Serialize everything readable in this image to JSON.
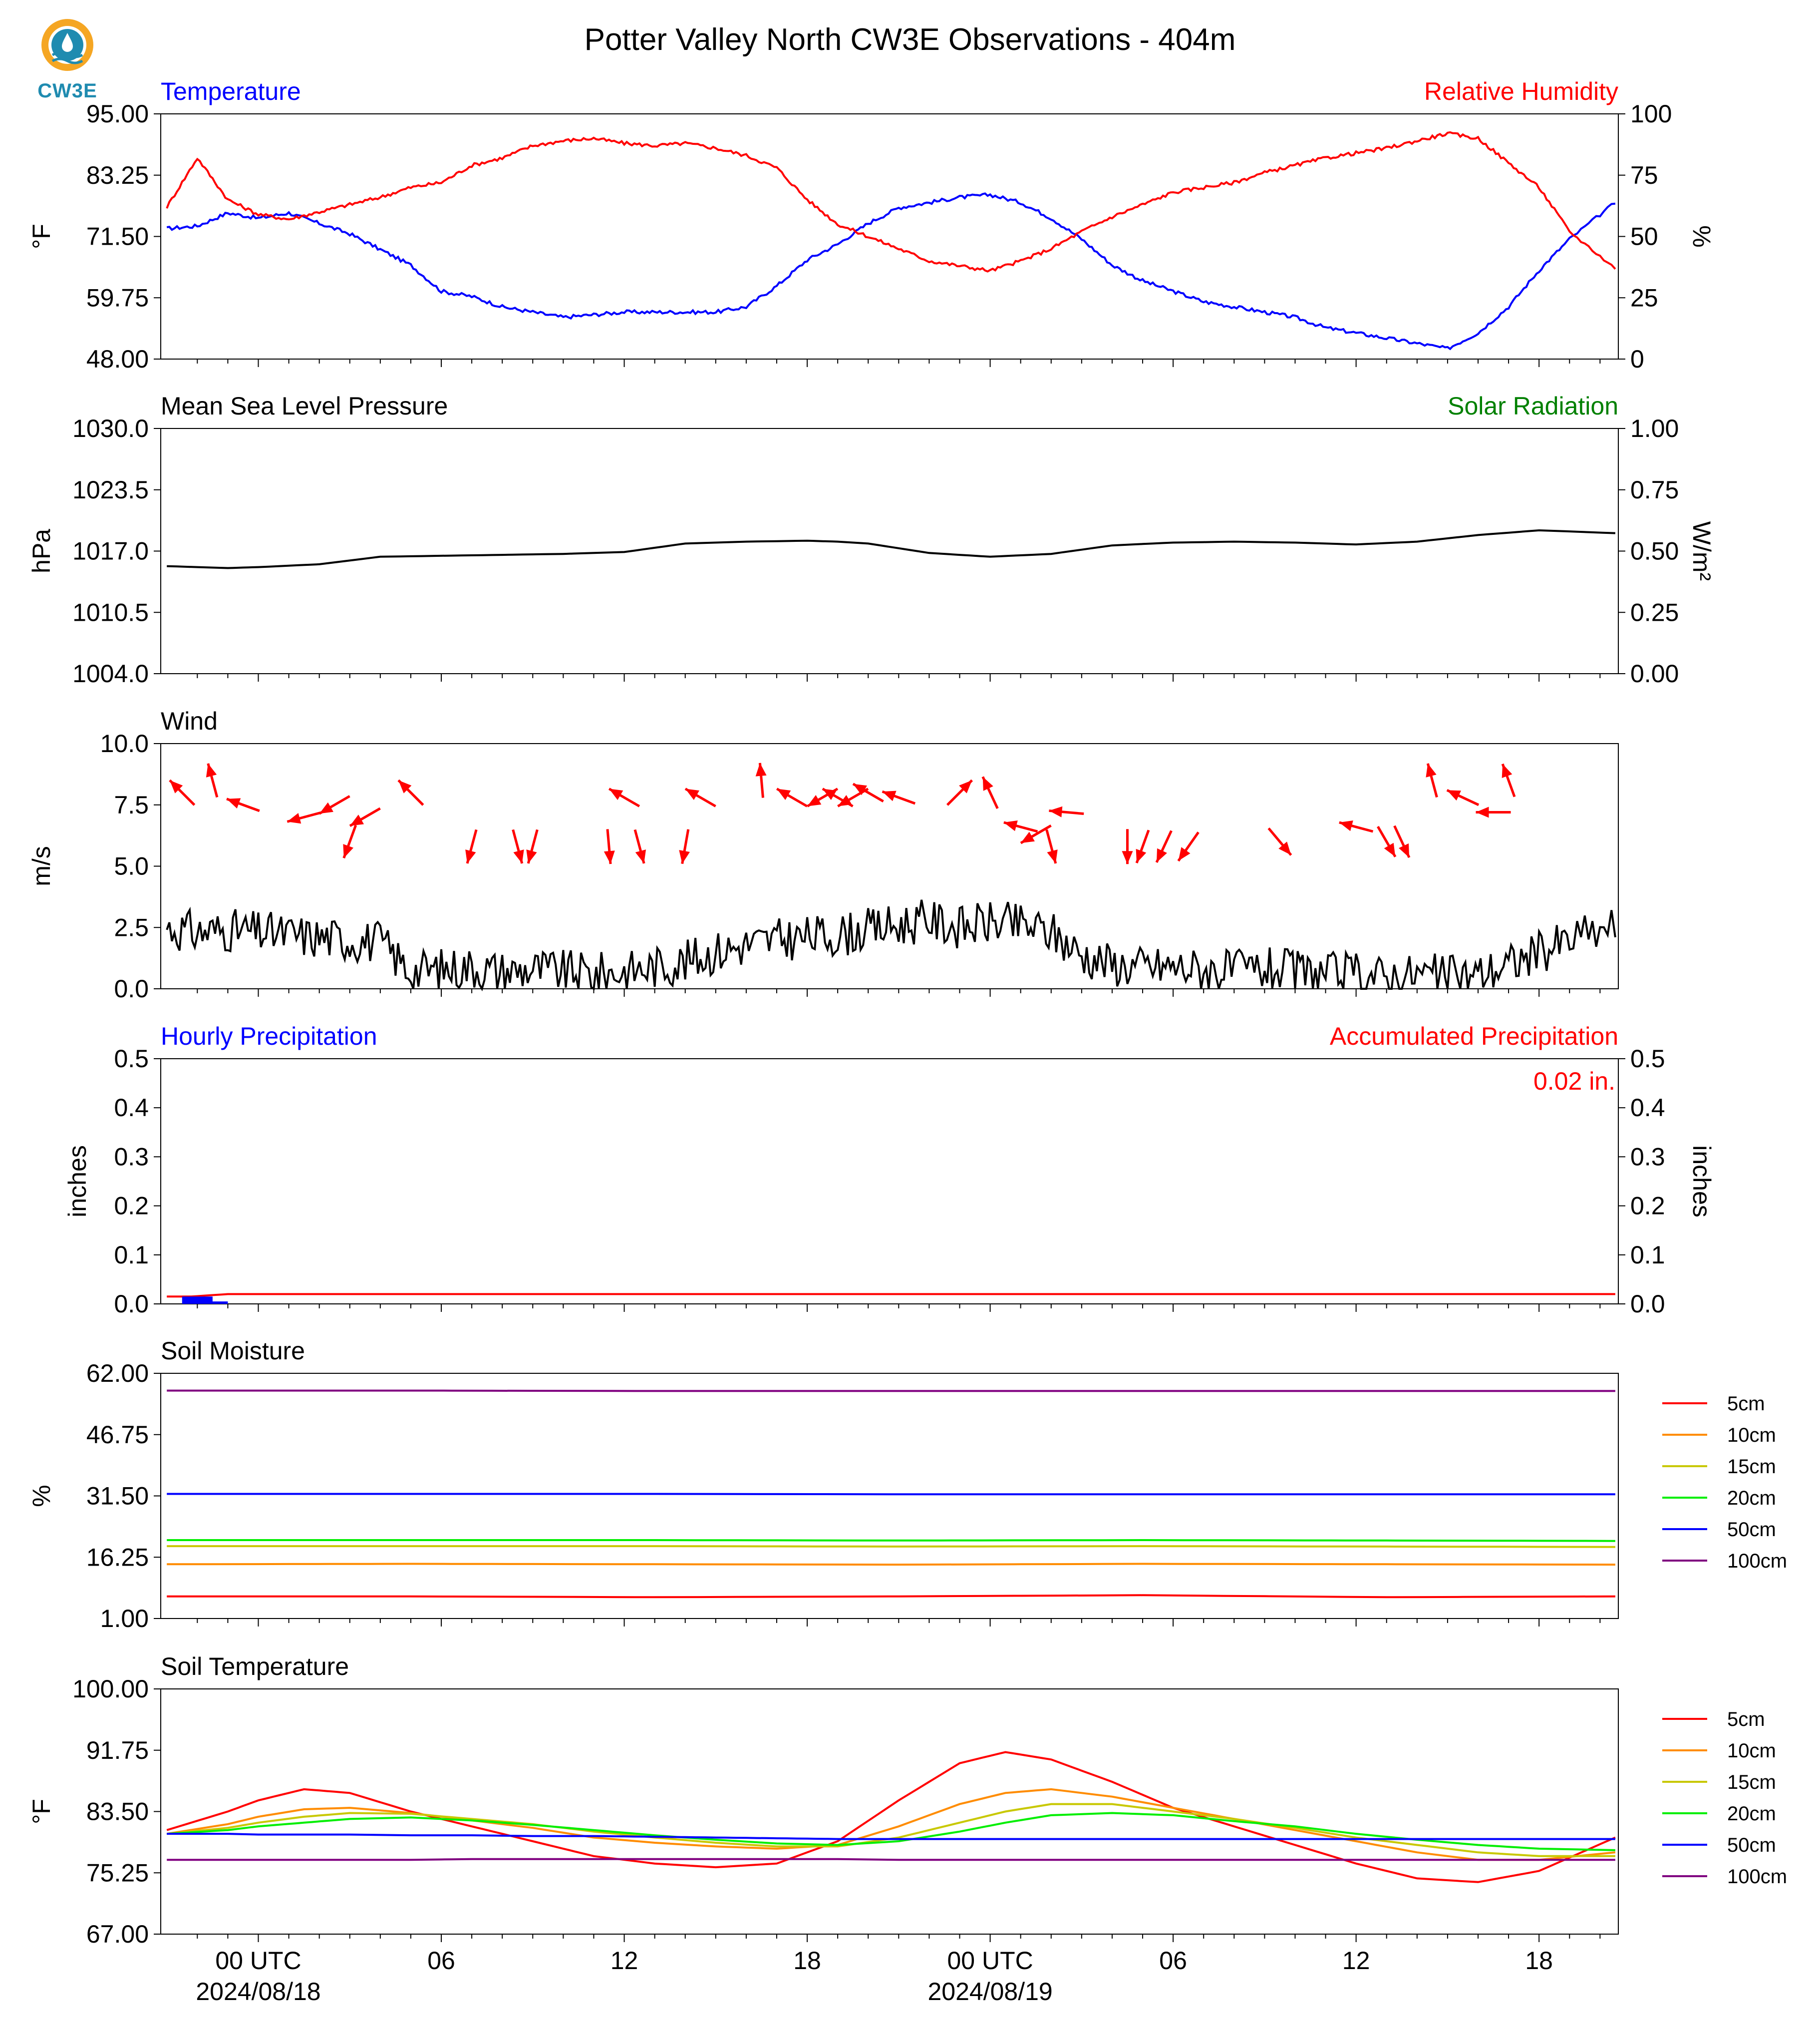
{
  "title": "Potter Valley North CW3E Observations - 404m",
  "logo_text": "CW3E",
  "colors": {
    "temp": "#0000ff",
    "rh": "#ff0000",
    "solar": "#008000",
    "pressure": "#000000",
    "wind_arrow": "#ff0000",
    "wind_speed": "#000000"
  },
  "x_axis": {
    "major_ticks": [
      {
        "label": "00 UTC",
        "sublabel": "2024/08/18"
      },
      {
        "label": "06",
        "sublabel": ""
      },
      {
        "label": "12",
        "sublabel": ""
      },
      {
        "label": "18",
        "sublabel": ""
      },
      {
        "label": "00 UTC",
        "sublabel": "2024/08/19"
      },
      {
        "label": "06",
        "sublabel": ""
      },
      {
        "label": "12",
        "sublabel": ""
      },
      {
        "label": "18",
        "sublabel": ""
      }
    ]
  },
  "soil_legend": [
    {
      "label": "5cm",
      "color": "#ff0000"
    },
    {
      "label": "10cm",
      "color": "#ff8c00"
    },
    {
      "label": "15cm",
      "color": "#c8c800"
    },
    {
      "label": "20cm",
      "color": "#00ee00"
    },
    {
      "label": "50cm",
      "color": "#0000ff"
    },
    {
      "label": "100cm",
      "color": "#800080"
    }
  ],
  "chart_data": [
    {
      "type": "line",
      "title_left": "Temperature",
      "title_right": "Relative Humidity",
      "ylabel_left": "°F",
      "ylabel_right": "%",
      "yticks_left": [
        "95.00",
        "83.25",
        "71.50",
        "59.75",
        "48.00"
      ],
      "yticks_right": [
        "100",
        "75",
        "50",
        "25",
        "0"
      ],
      "ylim_left": [
        48,
        95
      ],
      "ylim_right": [
        0,
        100
      ],
      "x_hours": [
        -3,
        -2,
        -1,
        0,
        1,
        2,
        3,
        4,
        5,
        6,
        7,
        8,
        9,
        10,
        11,
        12,
        13,
        14,
        15,
        16,
        17,
        18,
        19,
        20,
        21,
        22,
        23,
        24,
        25,
        26,
        27,
        28,
        29,
        30,
        31,
        32,
        33,
        34,
        35,
        36,
        37,
        38,
        39,
        40,
        41,
        42,
        43,
        44.5
      ],
      "series": [
        {
          "name": "Temperature",
          "axis": "left",
          "values": [
            73,
            73.5,
            76,
            75,
            76,
            74,
            72,
            69,
            66,
            61,
            60,
            58,
            57,
            56,
            56.5,
            57,
            57,
            57,
            57,
            58,
            62,
            67,
            70,
            74,
            77,
            78,
            79,
            79.5,
            78,
            75,
            71,
            66,
            63,
            61,
            59,
            58,
            57,
            56,
            54,
            53,
            52,
            51,
            50,
            53,
            58,
            65,
            71,
            78
          ]
        },
        {
          "name": "Relative Humidity",
          "axis": "right",
          "values": [
            62,
            82,
            65,
            59,
            57,
            60,
            63,
            66,
            70,
            72,
            79,
            82,
            87,
            89,
            90,
            88,
            87,
            88,
            86,
            83,
            78,
            65,
            55,
            50,
            45,
            40,
            38,
            36,
            40,
            45,
            52,
            58,
            63,
            68,
            70,
            72,
            76,
            79,
            82,
            84,
            86,
            89,
            92,
            90,
            80,
            70,
            52,
            37
          ]
        }
      ]
    },
    {
      "type": "line",
      "title_left": "Mean Sea Level Pressure",
      "title_right": "Solar Radiation",
      "ylabel_left": "hPa",
      "ylabel_right": "W/m²",
      "yticks_left": [
        "1030.0",
        "1023.5",
        "1017.0",
        "1010.5",
        "1004.0"
      ],
      "yticks_right": [
        "1.00",
        "0.75",
        "0.50",
        "0.25",
        "0.00"
      ],
      "ylim_left": [
        1004,
        1030
      ],
      "ylim_right": [
        0,
        1
      ],
      "x_hours": [
        -3,
        -1,
        0,
        2,
        4,
        6,
        8,
        10,
        12,
        14,
        16,
        18,
        19,
        20,
        22,
        24,
        26,
        28,
        30,
        32,
        34,
        36,
        38,
        40,
        42,
        44.5
      ],
      "series": [
        {
          "name": "Mean Sea Level Pressure",
          "axis": "left",
          "values": [
            1015.4,
            1015.2,
            1015.3,
            1015.6,
            1016.4,
            1016.5,
            1016.6,
            1016.7,
            1016.9,
            1017.8,
            1018.0,
            1018.1,
            1018.0,
            1017.8,
            1016.8,
            1016.4,
            1016.7,
            1017.6,
            1017.9,
            1018.0,
            1017.9,
            1017.7,
            1018.0,
            1018.7,
            1019.2,
            1018.9
          ]
        }
      ]
    },
    {
      "type": "line",
      "title_left": "Wind",
      "ylabel_left": "m/s",
      "yticks_left": [
        "10.0",
        "7.5",
        "5.0",
        "2.5",
        "0.0"
      ],
      "ylim_left": [
        0,
        10
      ],
      "x_hours": [
        -3,
        -2,
        -1,
        0,
        1,
        2,
        3,
        4,
        5,
        6,
        7,
        8,
        9,
        10,
        11,
        12,
        13,
        14,
        15,
        16,
        17,
        18,
        19,
        20,
        21,
        22,
        23,
        24,
        25,
        26,
        27,
        28,
        29,
        30,
        31,
        32,
        33,
        34,
        35,
        36,
        37,
        38,
        39,
        40,
        41,
        42,
        43,
        44.5
      ],
      "series": [
        {
          "name": "Wind speed",
          "axis": "left",
          "values": [
            2.5,
            2.3,
            2.4,
            2.3,
            2.2,
            2.1,
            2.0,
            1.9,
            0.7,
            0.8,
            0.9,
            0.7,
            0.8,
            0.7,
            0.6,
            0.7,
            0.9,
            1.1,
            1.5,
            1.8,
            2.0,
            2.1,
            2.2,
            2.4,
            2.6,
            2.8,
            2.5,
            2.7,
            2.6,
            2.3,
            1.4,
            1.0,
            0.9,
            0.9,
            0.8,
            0.7,
            0.8,
            0.7,
            0.6,
            0.6,
            0.5,
            0.6,
            0.5,
            0.6,
            1.0,
            1.5,
            2.0,
            2.6
          ]
        }
      ],
      "arrows": [
        {
          "hour": -2.5,
          "speed": 8.0,
          "dir_deg": 135
        },
        {
          "hour": -1.5,
          "speed": 8.5,
          "dir_deg": 165
        },
        {
          "hour": -0.5,
          "speed": 7.5,
          "dir_deg": 110
        },
        {
          "hour": 1.5,
          "speed": 7.0,
          "dir_deg": 75
        },
        {
          "hour": 2.5,
          "speed": 7.5,
          "dir_deg": 60
        },
        {
          "hour": 3.0,
          "speed": 6.0,
          "dir_deg": 20
        },
        {
          "hour": 3.5,
          "speed": 7.0,
          "dir_deg": 60
        },
        {
          "hour": 5.0,
          "speed": 8.0,
          "dir_deg": 135
        },
        {
          "hour": 7.0,
          "speed": 5.8,
          "dir_deg": 15
        },
        {
          "hour": 8.5,
          "speed": 5.8,
          "dir_deg": 345
        },
        {
          "hour": 9.0,
          "speed": 5.8,
          "dir_deg": 15
        },
        {
          "hour": 11.5,
          "speed": 5.8,
          "dir_deg": 355
        },
        {
          "hour": 12.0,
          "speed": 7.8,
          "dir_deg": 120
        },
        {
          "hour": 12.5,
          "speed": 5.8,
          "dir_deg": 345
        },
        {
          "hour": 14.0,
          "speed": 5.8,
          "dir_deg": 10
        },
        {
          "hour": 14.5,
          "speed": 7.8,
          "dir_deg": 120
        },
        {
          "hour": 16.5,
          "speed": 8.5,
          "dir_deg": 175
        },
        {
          "hour": 17.5,
          "speed": 7.8,
          "dir_deg": 120
        },
        {
          "hour": 18.5,
          "speed": 7.8,
          "dir_deg": 60
        },
        {
          "hour": 19.0,
          "speed": 7.8,
          "dir_deg": 120
        },
        {
          "hour": 19.5,
          "speed": 7.8,
          "dir_deg": 60
        },
        {
          "hour": 20.0,
          "speed": 8.0,
          "dir_deg": 120
        },
        {
          "hour": 21.0,
          "speed": 7.8,
          "dir_deg": 110
        },
        {
          "hour": 23.0,
          "speed": 8.0,
          "dir_deg": 225
        },
        {
          "hour": 24.0,
          "speed": 8.0,
          "dir_deg": 155
        },
        {
          "hour": 25.0,
          "speed": 6.6,
          "dir_deg": 105
        },
        {
          "hour": 25.5,
          "speed": 6.3,
          "dir_deg": 60
        },
        {
          "hour": 26.0,
          "speed": 5.8,
          "dir_deg": 345
        },
        {
          "hour": 26.5,
          "speed": 7.2,
          "dir_deg": 95
        },
        {
          "hour": 28.5,
          "speed": 5.8,
          "dir_deg": 0
        },
        {
          "hour": 29.0,
          "speed": 5.8,
          "dir_deg": 20
        },
        {
          "hour": 29.7,
          "speed": 5.8,
          "dir_deg": 25
        },
        {
          "hour": 30.5,
          "speed": 5.8,
          "dir_deg": 35
        },
        {
          "hour": 33.5,
          "speed": 6.0,
          "dir_deg": 320
        },
        {
          "hour": 36.0,
          "speed": 6.6,
          "dir_deg": 105
        },
        {
          "hour": 37.0,
          "speed": 6.0,
          "dir_deg": 330
        },
        {
          "hour": 37.5,
          "speed": 6.0,
          "dir_deg": 335
        },
        {
          "hour": 38.5,
          "speed": 8.5,
          "dir_deg": 165
        },
        {
          "hour": 39.5,
          "speed": 7.8,
          "dir_deg": 115
        },
        {
          "hour": 40.5,
          "speed": 7.2,
          "dir_deg": 90
        },
        {
          "hour": 41.0,
          "speed": 8.5,
          "dir_deg": 160
        }
      ]
    },
    {
      "type": "line",
      "title_left": "Hourly Precipitation",
      "title_right": "Accumulated Precipitation",
      "annotation": "0.02 in.",
      "ylabel_left": "inches",
      "ylabel_right": "inches",
      "yticks_left": [
        "0.5",
        "0.4",
        "0.3",
        "0.2",
        "0.1",
        "0.0"
      ],
      "yticks_right": [
        "0.5",
        "0.4",
        "0.3",
        "0.2",
        "0.1",
        "0.0"
      ],
      "ylim_left": [
        0,
        0.5
      ],
      "ylim_right": [
        0,
        0.5
      ],
      "hourly_bars": [
        {
          "hour": -2.5,
          "value": 0.015
        },
        {
          "hour": -2.0,
          "value": 0.005
        }
      ],
      "x_hours": [
        -3,
        -2.2,
        -1,
        44.5
      ],
      "series": [
        {
          "name": "Accumulated Precipitation",
          "axis": "right",
          "values": [
            0.015,
            0.015,
            0.02,
            0.02
          ]
        }
      ]
    },
    {
      "type": "line",
      "title_left": "Soil Moisture",
      "ylabel_left": "%",
      "yticks_left": [
        "62.00",
        "46.75",
        "31.50",
        "16.25",
        "1.00"
      ],
      "ylim_left": [
        1,
        62
      ],
      "x_hours": [
        -3,
        5,
        13,
        21,
        29,
        37,
        44.5
      ],
      "series": [
        {
          "name": "5cm",
          "values": [
            6.5,
            6.5,
            6.3,
            6.5,
            6.8,
            6.3,
            6.5
          ]
        },
        {
          "name": "10cm",
          "values": [
            14.5,
            14.6,
            14.5,
            14.4,
            14.6,
            14.5,
            14.4
          ]
        },
        {
          "name": "15cm",
          "values": [
            19.0,
            19.0,
            19.0,
            18.9,
            19.0,
            18.9,
            18.8
          ]
        },
        {
          "name": "20cm",
          "values": [
            20.5,
            20.5,
            20.5,
            20.4,
            20.5,
            20.4,
            20.3
          ]
        },
        {
          "name": "50cm",
          "values": [
            32.0,
            32.0,
            32.0,
            31.9,
            31.9,
            31.9,
            31.9
          ]
        },
        {
          "name": "100cm",
          "values": [
            57.7,
            57.7,
            57.6,
            57.6,
            57.6,
            57.6,
            57.6
          ]
        }
      ]
    },
    {
      "type": "line",
      "title_left": "Soil Temperature",
      "ylabel_left": "°F",
      "yticks_left": [
        "100.00",
        "91.75",
        "83.50",
        "75.25",
        "67.00"
      ],
      "ylim_left": [
        67,
        100
      ],
      "x_hours": [
        -3,
        -1,
        0,
        1.5,
        3,
        5,
        7,
        9,
        11,
        13,
        15,
        17,
        19,
        21,
        23,
        24.5,
        26,
        28,
        30,
        32,
        34,
        36,
        38,
        40,
        42,
        44.5
      ],
      "series": [
        {
          "name": "5cm",
          "values": [
            81.0,
            83.5,
            85.0,
            86.5,
            86.0,
            83.5,
            81.5,
            79.5,
            77.5,
            76.5,
            76.0,
            76.5,
            79.5,
            85.0,
            90.0,
            91.5,
            90.5,
            87.5,
            84.0,
            81.5,
            79.0,
            76.5,
            74.5,
            74.0,
            75.5,
            80.0
          ]
        },
        {
          "name": "10cm",
          "values": [
            80.5,
            81.8,
            82.8,
            83.8,
            84.0,
            83.3,
            82.3,
            81.3,
            80.0,
            79.3,
            78.8,
            78.5,
            79.0,
            81.5,
            84.5,
            86.0,
            86.5,
            85.5,
            84.0,
            82.5,
            81.0,
            79.5,
            78.0,
            77.0,
            77.0,
            78.0
          ]
        },
        {
          "name": "15cm",
          "values": [
            80.5,
            81.3,
            82.0,
            82.8,
            83.3,
            83.2,
            82.5,
            81.8,
            80.8,
            80.0,
            79.3,
            78.8,
            78.8,
            80.0,
            82.0,
            83.5,
            84.5,
            84.5,
            83.5,
            82.5,
            81.3,
            80.0,
            79.0,
            78.0,
            77.5,
            77.5
          ]
        },
        {
          "name": "20cm",
          "values": [
            80.5,
            81.0,
            81.5,
            82.0,
            82.5,
            82.7,
            82.3,
            81.7,
            81.0,
            80.3,
            79.7,
            79.2,
            79.0,
            79.5,
            80.8,
            82.0,
            83.0,
            83.3,
            83.0,
            82.2,
            81.5,
            80.5,
            79.7,
            79.0,
            78.5,
            78.3
          ]
        },
        {
          "name": "50cm",
          "values": [
            80.5,
            80.5,
            80.4,
            80.4,
            80.4,
            80.3,
            80.3,
            80.2,
            80.2,
            80.1,
            80.0,
            79.9,
            79.8,
            79.8,
            79.8,
            79.8,
            79.8,
            79.8,
            79.8,
            79.8,
            79.8,
            79.8,
            79.8,
            79.8,
            79.8,
            79.8
          ]
        },
        {
          "name": "100cm",
          "values": [
            77.0,
            77.0,
            77.0,
            77.0,
            77.0,
            77.0,
            77.1,
            77.1,
            77.1,
            77.1,
            77.1,
            77.1,
            77.1,
            77.0,
            77.0,
            77.0,
            77.0,
            77.0,
            77.0,
            77.0,
            77.0,
            77.0,
            77.0,
            77.0,
            77.0,
            77.0
          ]
        }
      ]
    }
  ]
}
